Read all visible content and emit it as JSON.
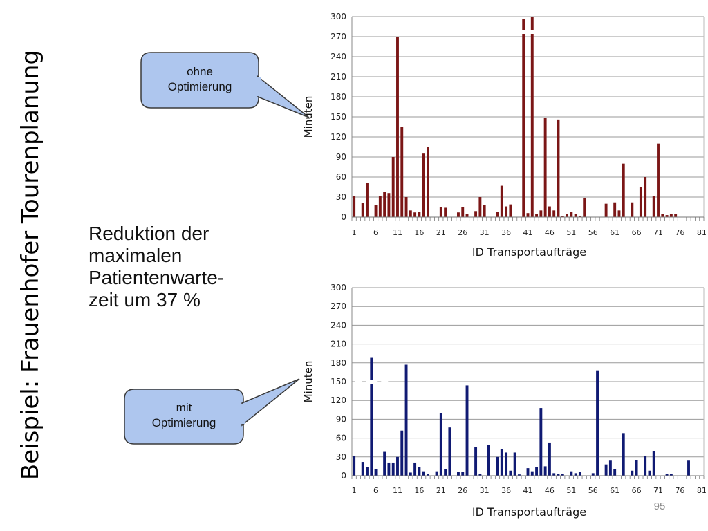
{
  "slide": {
    "title": "Beispiel: Frauenhofer Tourenplanung",
    "reduction_lines": [
      "Reduktion der",
      "maximalen",
      "Patientenwarte-",
      "zeit um 37 %"
    ],
    "page_number": "95",
    "colors": {
      "callout_fill": "#aec6ee",
      "callout_stroke": "#3a3a3a"
    }
  },
  "callouts": {
    "top": [
      "ohne",
      "Optimierung"
    ],
    "bottom": [
      "mit",
      "Optimierung"
    ]
  },
  "chart_data": [
    {
      "type": "bar",
      "name": "ohne Optimierung",
      "color": "#7b1616",
      "xlabel": "ID Transportaufträge",
      "ylabel": "Minuten",
      "ylim": [
        0,
        300
      ],
      "yticks": [
        0,
        30,
        60,
        90,
        120,
        150,
        180,
        210,
        240,
        270,
        300
      ],
      "xticks": [
        1,
        6,
        11,
        16,
        21,
        26,
        31,
        36,
        41,
        46,
        51,
        56,
        61,
        66,
        71,
        76,
        81
      ],
      "grid": true,
      "clipped_bars": [
        40,
        42
      ],
      "x": [
        1,
        3,
        4,
        6,
        7,
        8,
        9,
        10,
        11,
        12,
        13,
        14,
        15,
        16,
        17,
        18,
        21,
        22,
        25,
        26,
        27,
        29,
        30,
        31,
        34,
        35,
        36,
        37,
        40,
        41,
        42,
        43,
        44,
        45,
        46,
        47,
        48,
        49,
        50,
        51,
        52,
        53,
        54,
        59,
        61,
        62,
        63,
        65,
        67,
        68,
        70,
        71,
        72,
        73,
        74,
        75
      ],
      "values": [
        32,
        21,
        51,
        18,
        32,
        38,
        36,
        90,
        270,
        135,
        30,
        10,
        7,
        8,
        95,
        105,
        15,
        14,
        7,
        15,
        5,
        9,
        30,
        18,
        8,
        47,
        16,
        19,
        296,
        6,
        300,
        5,
        10,
        148,
        16,
        10,
        146,
        2,
        5,
        8,
        5,
        2,
        29,
        20,
        22,
        10,
        80,
        22,
        45,
        60,
        32,
        110,
        5,
        3,
        5,
        5
      ]
    },
    {
      "type": "bar",
      "name": "mit Optimierung",
      "color": "#101a73",
      "xlabel": "ID Transportaufträge",
      "ylabel": "Minuten",
      "ylim": [
        0,
        300
      ],
      "yticks": [
        0,
        30,
        60,
        90,
        120,
        150,
        180,
        210,
        240,
        270,
        300
      ],
      "xticks": [
        1,
        6,
        11,
        16,
        21,
        26,
        31,
        36,
        41,
        46,
        51,
        56,
        61,
        66,
        71,
        76,
        81
      ],
      "grid": true,
      "clipped_bars": [
        5
      ],
      "x": [
        1,
        3,
        4,
        5,
        6,
        8,
        9,
        10,
        11,
        12,
        13,
        14,
        15,
        16,
        17,
        18,
        20,
        21,
        22,
        23,
        25,
        26,
        27,
        29,
        30,
        32,
        34,
        35,
        36,
        37,
        38,
        39,
        41,
        42,
        43,
        44,
        45,
        46,
        47,
        48,
        49,
        51,
        52,
        53,
        56,
        57,
        59,
        60,
        61,
        63,
        65,
        66,
        68,
        69,
        70,
        73,
        74,
        78
      ],
      "values": [
        32,
        22,
        14,
        188,
        10,
        38,
        21,
        21,
        30,
        72,
        177,
        5,
        21,
        14,
        7,
        3,
        7,
        100,
        11,
        77,
        6,
        6,
        144,
        46,
        3,
        49,
        30,
        42,
        37,
        8,
        37,
        2,
        12,
        7,
        14,
        108,
        15,
        53,
        4,
        3,
        3,
        7,
        4,
        6,
        4,
        168,
        18,
        24,
        10,
        68,
        8,
        25,
        32,
        8,
        39,
        3,
        3,
        24
      ]
    }
  ]
}
